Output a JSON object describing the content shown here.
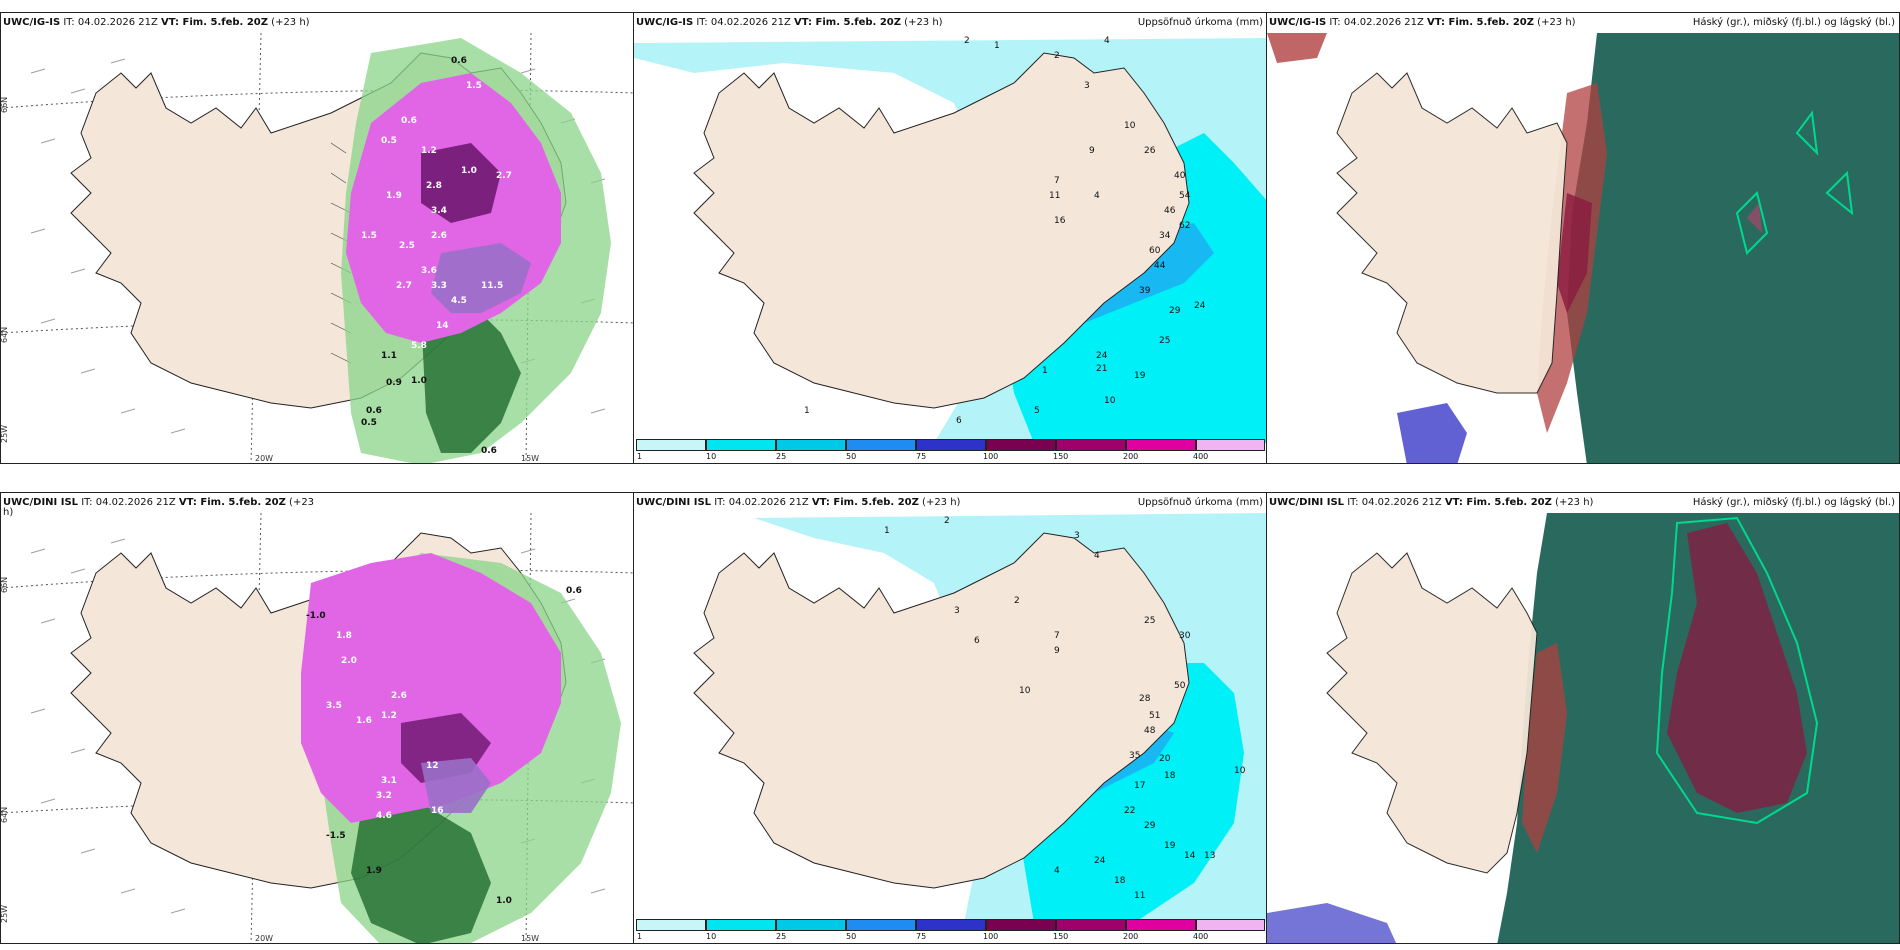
{
  "rows": [
    {
      "model": "UWC/IG-IS",
      "panels": [
        {
          "id": "tl",
          "model": "UWC/IG-IS",
          "rest": " IT: 04.02.2026 21Z ",
          "vt_label": "VT:",
          "vt_value": " Fim. 5.feb. 20Z",
          "lead": " (+23 h)",
          "right": ""
        },
        {
          "id": "tm",
          "model": "UWC/IG-IS",
          "rest": " IT: 04.02.2026 21Z ",
          "vt_label": "VT:",
          "vt_value": " Fim. 5.feb. 20Z",
          "lead": " (+23 h)",
          "right": "Uppsöfnuð úrkoma (mm)"
        },
        {
          "id": "tr",
          "model": "UWC/IG-IS",
          "rest": " IT: 04.02.2026 21Z ",
          "vt_label": "VT:",
          "vt_value": " Fim. 5.feb. 20Z",
          "lead": " (+23 h)",
          "right": "Háský (gr.), miðský (fj.bl.) og lágský (bl.)"
        }
      ]
    },
    {
      "model": "UWC/DINI ISL",
      "panels": [
        {
          "id": "bl",
          "model": "UWC/DINI ISL",
          "rest": " IT: 04.02.2026 21Z ",
          "vt_label": "VT:",
          "vt_value": " Fim. 5.feb. 20Z",
          "lead": " (+23",
          "wrap": "h)",
          "right": ""
        },
        {
          "id": "bm",
          "model": "UWC/DINI ISL",
          "rest": " IT: 04.02.2026 21Z ",
          "vt_label": "VT:",
          "vt_value": " Fim. 5.feb. 20Z",
          "lead": " (+23 h)",
          "right": "Uppsöfnuð úrkoma (mm)"
        },
        {
          "id": "br",
          "model": "UWC/DINI ISL",
          "rest": " IT: 04.02.2026 21Z ",
          "vt_label": "VT:",
          "vt_value": " Fim. 5.feb. 20Z",
          "lead": " (+23 h)",
          "right": "Háský (gr.), miðský (fj.bl.) og lágský (bl.)"
        }
      ]
    }
  ],
  "grid_labels": {
    "lat_66": "66N",
    "lat_64": "64N",
    "lon_25": "25W",
    "lon_20": "20W",
    "lon_15": "15W"
  },
  "legend": {
    "ticks": [
      "1",
      "10",
      "25",
      "50",
      "75",
      "100",
      "150",
      "200",
      "400"
    ],
    "colors": [
      "#c8f5f8",
      "#00e5f0",
      "#00c8e8",
      "#1e8cf0",
      "#2d32c8",
      "#7a0050",
      "#a0006a",
      "#e000a0",
      "#f0b4f0"
    ]
  },
  "snow_numbers_top": [
    "0.6",
    "1.5",
    "0.6",
    "0.5",
    "1.2",
    "1.9",
    "1.0",
    "2.8",
    "3.4",
    "2.7",
    "1.5",
    "2.5",
    "3.6",
    "3.3",
    "2.6",
    "2.7",
    "4.5",
    "11.5",
    "14",
    "5.8",
    "1.1",
    "0.9",
    "1.0",
    "0.6",
    "0.5",
    "0.6"
  ],
  "snow_numbers_bottom": [
    "-1.0",
    "1.8",
    "2.0",
    "3.5",
    "1.6",
    "1.2",
    "2.6",
    "3.1",
    "3.2",
    "4.6",
    "12",
    "16",
    "-1.5",
    "1.9",
    "1.0",
    "0.6"
  ],
  "precip_numbers_top": [
    "2",
    "1",
    "2",
    "4",
    "3",
    "10",
    "9",
    "26",
    "7",
    "11",
    "4",
    "16",
    "40",
    "54",
    "46",
    "62",
    "34",
    "60",
    "44",
    "39",
    "24",
    "29",
    "25",
    "24",
    "21",
    "19",
    "10",
    "5",
    "1",
    "6",
    "1"
  ],
  "precip_numbers_bottom": [
    "2",
    "1",
    "3",
    "4",
    "2",
    "3",
    "6",
    "7",
    "9",
    "10",
    "25",
    "30",
    "50",
    "28",
    "51",
    "48",
    "35",
    "20",
    "18",
    "17",
    "22",
    "29",
    "19",
    "14",
    "13",
    "10",
    "24",
    "18",
    "11",
    "4"
  ],
  "colors": {
    "land": "#f4e6d8",
    "ocean_clouds": "#2a6a5e",
    "cyan_light": "#b4f4f8",
    "cyan": "#00f0f8",
    "magenta": "#e066e6",
    "dark_purple": "#5a0a5a",
    "green": "#5aaa5a"
  }
}
